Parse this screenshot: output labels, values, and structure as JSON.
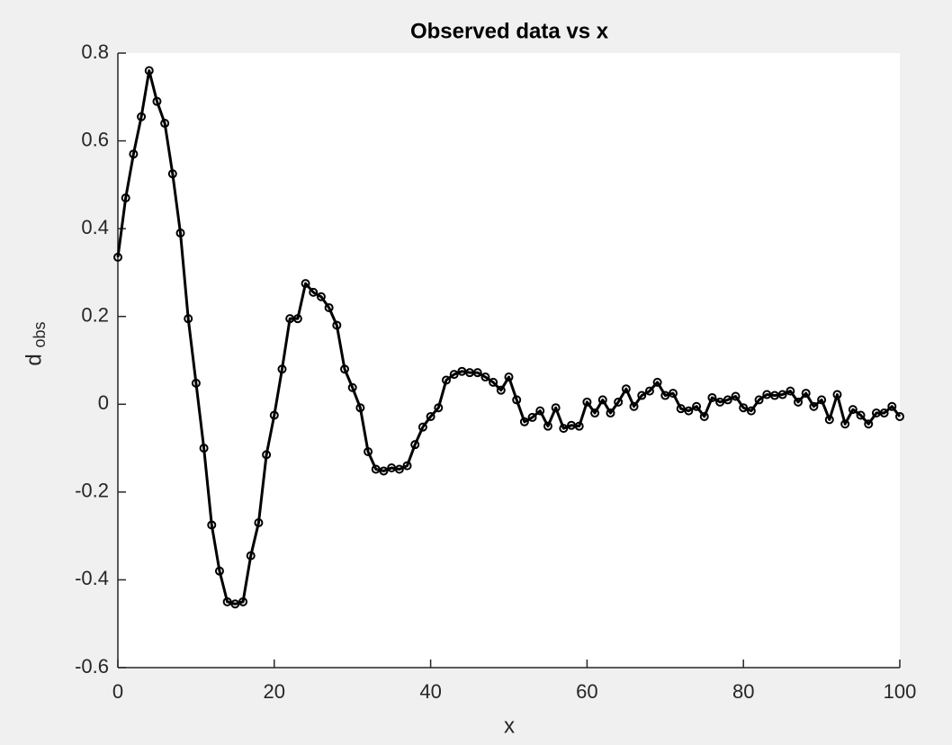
{
  "chart_data": {
    "type": "line",
    "title": "Observed data vs x",
    "xlabel": "x",
    "ylabel": "d",
    "ylabel_subscript": "obs",
    "x": [
      0,
      1,
      2,
      3,
      4,
      5,
      6,
      7,
      8,
      9,
      10,
      11,
      12,
      13,
      14,
      15,
      16,
      17,
      18,
      19,
      20,
      21,
      22,
      23,
      24,
      25,
      26,
      27,
      28,
      29,
      30,
      31,
      32,
      33,
      34,
      35,
      36,
      37,
      38,
      39,
      40,
      41,
      42,
      43,
      44,
      45,
      46,
      47,
      48,
      49,
      50,
      51,
      52,
      53,
      54,
      55,
      56,
      57,
      58,
      59,
      60,
      61,
      62,
      63,
      64,
      65,
      66,
      67,
      68,
      69,
      70,
      71,
      72,
      73,
      74,
      75,
      76,
      77,
      78,
      79,
      80,
      81,
      82,
      83,
      84,
      85,
      86,
      87,
      88,
      89,
      90,
      91,
      92,
      93,
      94,
      95,
      96,
      97,
      98,
      99,
      100
    ],
    "series": [
      {
        "color": "#000000",
        "marker": "o",
        "values": [
          0.335,
          0.47,
          0.57,
          0.655,
          0.76,
          0.69,
          0.64,
          0.525,
          0.39,
          0.195,
          0.048,
          -0.1,
          -0.275,
          -0.38,
          -0.45,
          -0.455,
          -0.45,
          -0.345,
          -0.27,
          -0.115,
          -0.025,
          0.08,
          0.195,
          0.195,
          0.275,
          0.255,
          0.245,
          0.22,
          0.18,
          0.08,
          0.038,
          -0.008,
          -0.108,
          -0.148,
          -0.152,
          -0.145,
          -0.148,
          -0.14,
          -0.092,
          -0.052,
          -0.028,
          -0.008,
          0.055,
          0.068,
          0.075,
          0.072,
          0.072,
          0.062,
          0.05,
          0.032,
          0.062,
          0.01,
          -0.04,
          -0.03,
          -0.015,
          -0.05,
          -0.008,
          -0.055,
          -0.048,
          -0.05,
          0.005,
          -0.02,
          0.01,
          -0.02,
          0.005,
          0.035,
          -0.005,
          0.02,
          0.03,
          0.05,
          0.02,
          0.025,
          -0.01,
          -0.015,
          -0.005,
          -0.028,
          0.015,
          0.005,
          0.01,
          0.018,
          -0.008,
          -0.015,
          0.01,
          0.022,
          0.02,
          0.022,
          0.03,
          0.005,
          0.025,
          -0.005,
          0.01,
          -0.035,
          0.022,
          -0.045,
          -0.012,
          -0.025,
          -0.045,
          -0.02,
          -0.02,
          -0.005,
          -0.028
        ]
      }
    ],
    "xlim": [
      0,
      100
    ],
    "xticks": [
      0,
      20,
      40,
      60,
      80,
      100
    ],
    "ylim": [
      -0.6,
      0.8
    ],
    "yticks": [
      -0.6,
      -0.4,
      -0.2,
      0,
      0.2,
      0.4,
      0.6,
      0.8
    ],
    "grid": false
  }
}
